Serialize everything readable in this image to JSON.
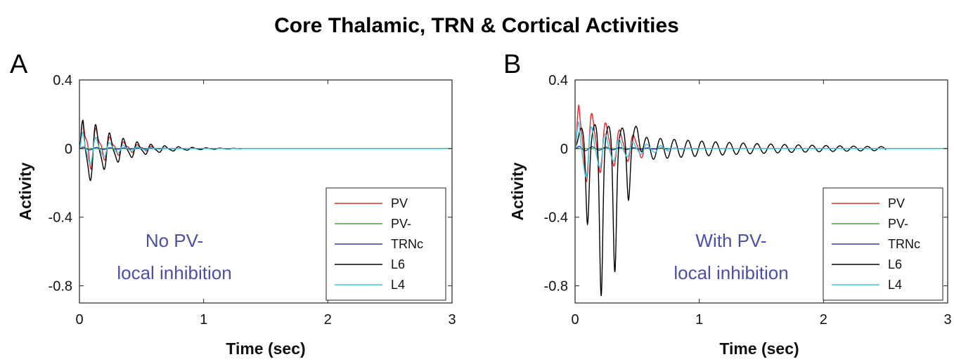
{
  "title": "Core Thalamic, TRN & Cortical Activities",
  "chart_data": [
    {
      "type": "line",
      "panel": "A",
      "annotation": [
        "No PV-",
        "local inhibition"
      ],
      "xlabel": "Time (sec)",
      "ylabel": "Activity",
      "xlim": [
        0,
        3
      ],
      "ylim": [
        -0.9,
        0.4
      ],
      "xticks": [
        0,
        1,
        2,
        3
      ],
      "xtick_labels": [
        "0",
        "1",
        "2",
        "3"
      ],
      "yticks": [
        0.4,
        0,
        -0.4,
        -0.8
      ],
      "ytick_labels": [
        "0.4",
        "0",
        "-0.4",
        "-0.8"
      ],
      "legend_position": "lower-right",
      "series": [
        {
          "name": "PV",
          "color": "#e8292b",
          "type": "osc",
          "A0": 0.17,
          "A1": 0.07,
          "bias": 0.07,
          "f": 9.0,
          "tau": 0.2,
          "end": 0.6
        },
        {
          "name": "PV-",
          "color": "#3cb12a",
          "type": "osc",
          "A0": 0.0,
          "A1": 0.0,
          "bias": 0.0,
          "f": 9.0,
          "tau": 0.2,
          "end": 0.6
        },
        {
          "name": "TRNc",
          "color": "#3a3ab0",
          "type": "osc",
          "A0": 0.01,
          "A1": 0.0,
          "bias": 0.0,
          "f": 9.0,
          "tau": 0.3,
          "end": 0.8
        },
        {
          "name": "L6",
          "color": "#000000",
          "type": "osc",
          "A0": 0.22,
          "A1": 0.06,
          "bias": -0.05,
          "f": 9.0,
          "tau": 0.26,
          "end": 1.3
        },
        {
          "name": "L4",
          "color": "#40c4d8",
          "type": "osc",
          "A0": 0.13,
          "A1": 0.03,
          "bias": -0.02,
          "f": 9.0,
          "tau": 0.18,
          "end": 0.7
        }
      ]
    },
    {
      "type": "line",
      "panel": "B",
      "annotation": [
        "With PV-",
        "local inhibition"
      ],
      "xlabel": "Time (sec)",
      "ylabel": "Activity",
      "xlim": [
        0,
        3
      ],
      "ylim": [
        -0.9,
        0.4
      ],
      "xticks": [
        0,
        1,
        2,
        3
      ],
      "xtick_labels": [
        "0",
        "1",
        "2",
        "3"
      ],
      "yticks": [
        0.4,
        0,
        -0.4,
        -0.8
      ],
      "ytick_labels": [
        "0.4",
        "0",
        "-0.4",
        "-0.8"
      ],
      "legend_position": "lower-right",
      "series": [
        {
          "name": "PV",
          "color": "#e8292b",
          "type": "osc",
          "A0": 0.25,
          "A1": 0.06,
          "bias": 0.08,
          "f": 9.0,
          "tau": 0.35,
          "end": 0.55
        },
        {
          "name": "PV-",
          "color": "#3cb12a",
          "type": "osc",
          "A0": 0.0,
          "A1": 0.0,
          "bias": 0.0,
          "f": 9.0,
          "tau": 0.2,
          "end": 0.6
        },
        {
          "name": "TRNc",
          "color": "#3a3ab0",
          "type": "osc",
          "A0": 0.015,
          "A1": 0.0,
          "bias": 0.0,
          "f": 9.0,
          "tau": 0.4,
          "end": 1.0
        },
        {
          "name": "L6",
          "color": "#000000",
          "type": "l6b",
          "dips": [
            [
              0.1,
              -0.45
            ],
            [
              0.21,
              -0.87
            ],
            [
              0.32,
              -0.73
            ],
            [
              0.43,
              -0.31
            ]
          ],
          "peaks": [
            [
              0.05,
              0.12
            ],
            [
              0.16,
              0.14
            ],
            [
              0.27,
              0.13
            ],
            [
              0.38,
              0.12
            ],
            [
              0.49,
              0.13
            ]
          ],
          "f": 9.0,
          "tail_amp": 0.07,
          "tail_tau": 1.1,
          "start_tail": 0.5,
          "end": 2.5
        },
        {
          "name": "L4",
          "color": "#40c4d8",
          "type": "osc",
          "A0": 0.2,
          "A1": 0.04,
          "bias": -0.03,
          "f": 9.0,
          "tau": 0.28,
          "end": 0.75
        }
      ]
    }
  ]
}
